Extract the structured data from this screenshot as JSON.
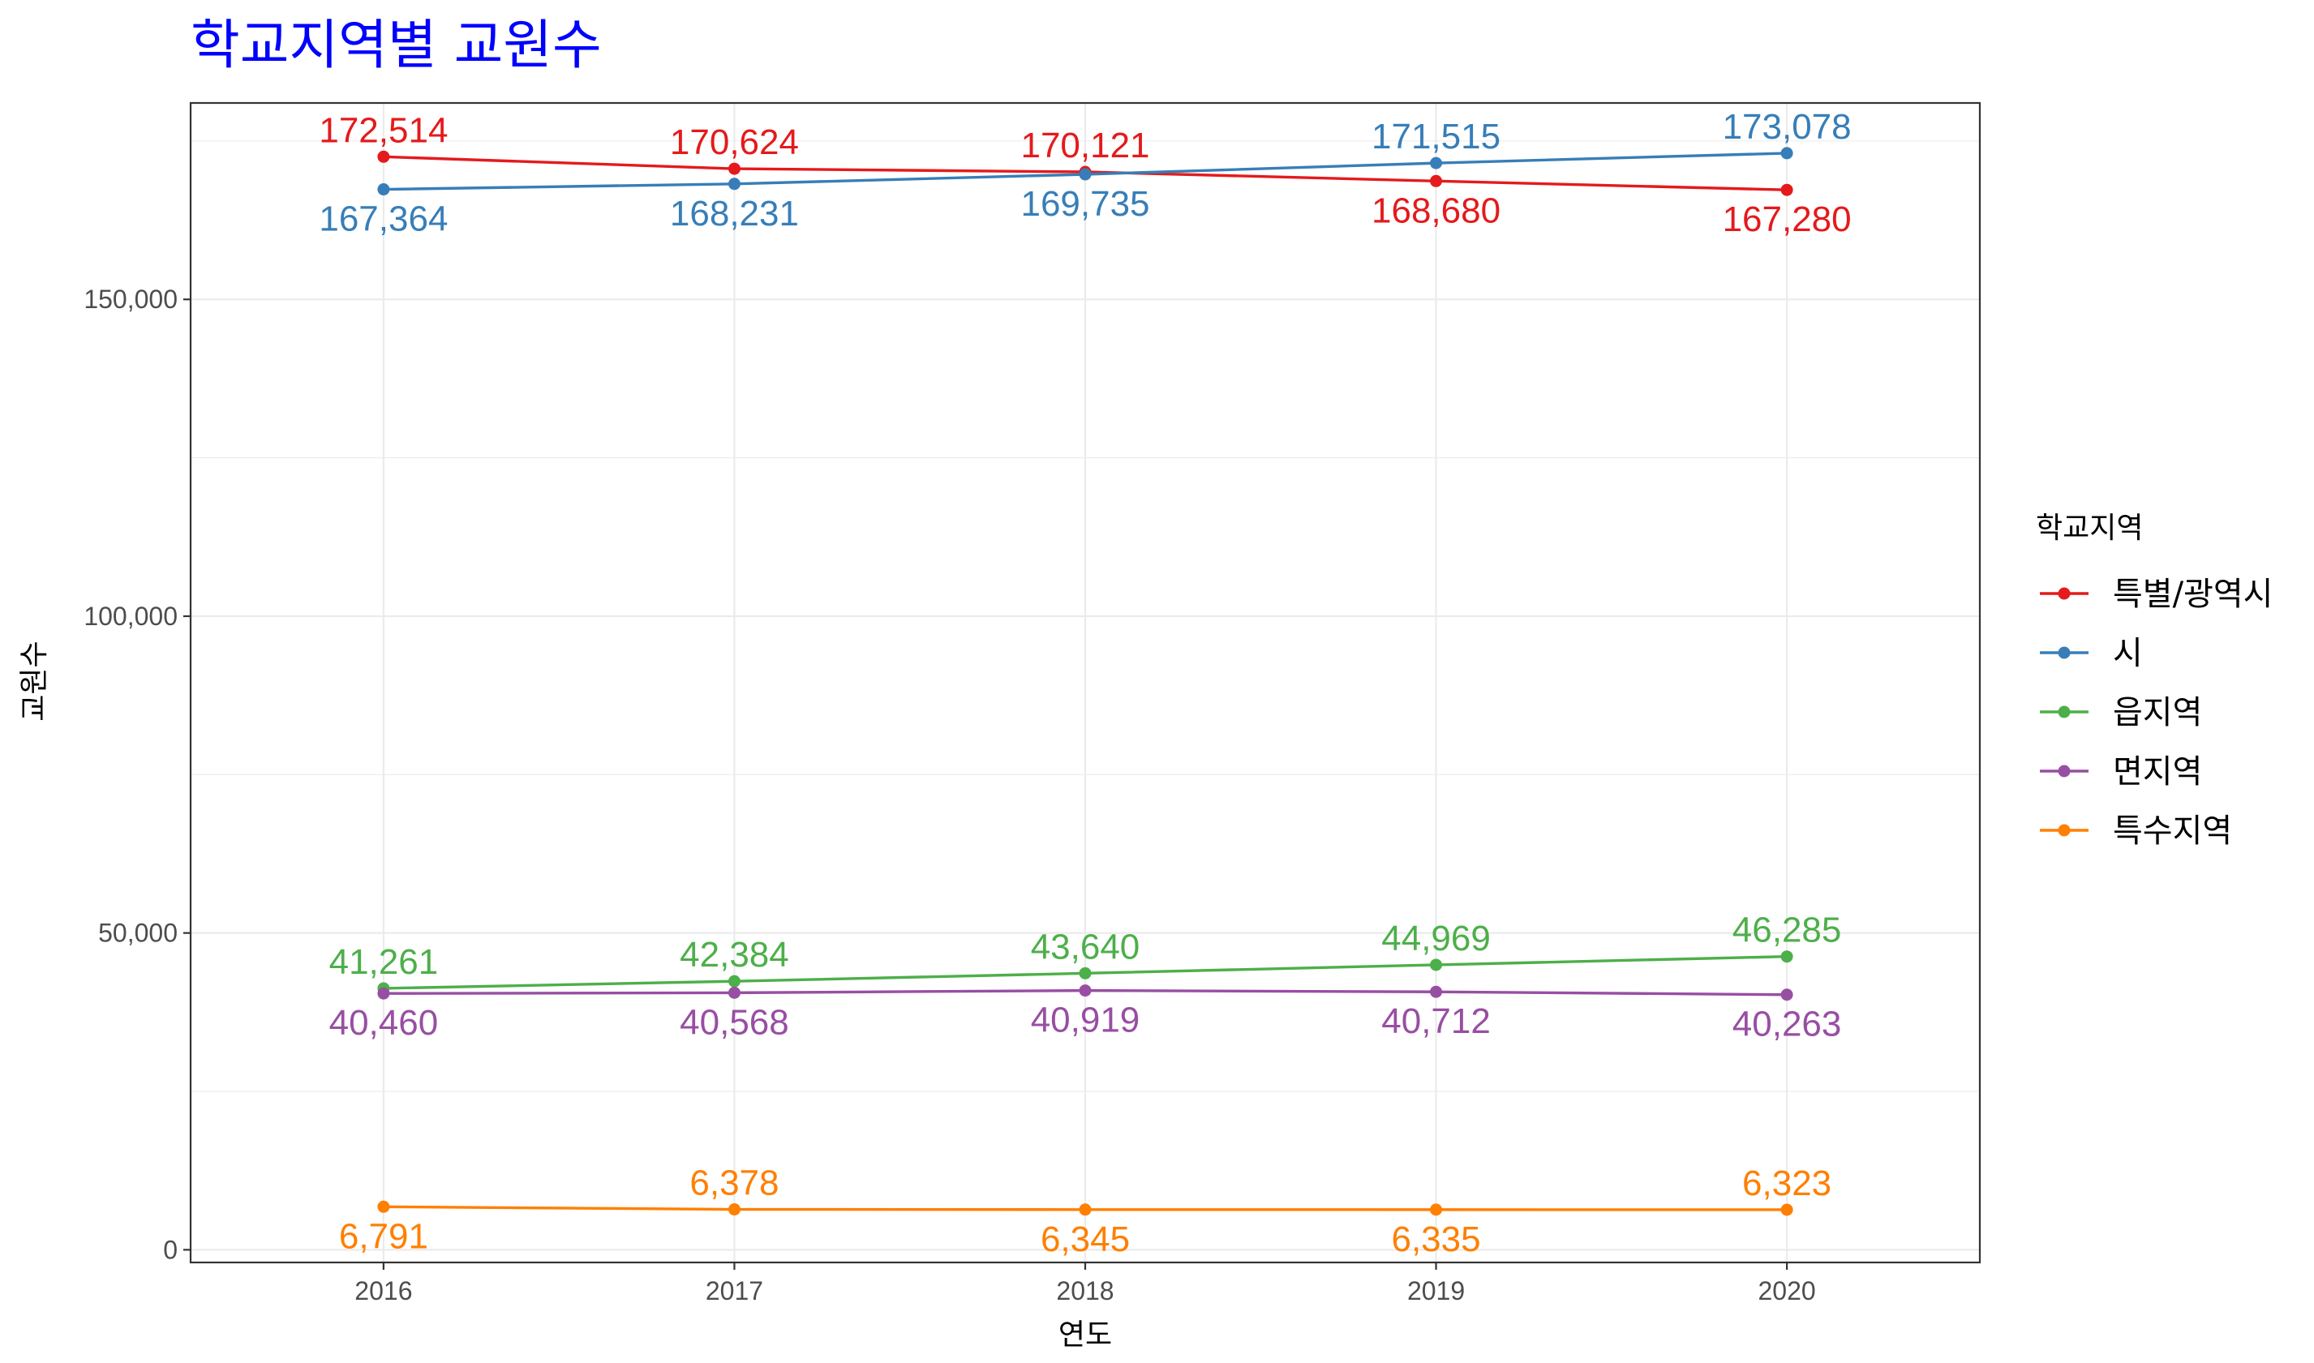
{
  "chart_data": {
    "type": "line",
    "title": "학교지역별 교원수",
    "xlabel": "연도",
    "ylabel": "교원수",
    "x": [
      2016,
      2017,
      2018,
      2019,
      2020
    ],
    "x_tick_labels": [
      "2016",
      "2017",
      "2018",
      "2019",
      "2020"
    ],
    "xlim": [
      2015.45,
      2020.55
    ],
    "ylim": [
      -2000,
      181000
    ],
    "y_ticks": [
      0,
      50000,
      100000,
      150000
    ],
    "y_tick_labels": [
      "0",
      "50,000",
      "100,000",
      "150,000"
    ],
    "grid": true,
    "legend": {
      "title": "학교지역",
      "position": "right"
    },
    "series": [
      {
        "name": "특별/광역시",
        "color": "#e41a1c",
        "values": [
          172514,
          170624,
          170121,
          168680,
          167280
        ],
        "labels": [
          "172,514",
          "170,624",
          "170,121",
          "168,680",
          "167,280"
        ],
        "label_side": [
          "above",
          "above",
          "above",
          "below",
          "below"
        ]
      },
      {
        "name": "시",
        "color": "#377eb8",
        "values": [
          167364,
          168231,
          169735,
          171515,
          173078
        ],
        "labels": [
          "167,364",
          "168,231",
          "169,735",
          "171,515",
          "173,078"
        ],
        "label_side": [
          "below",
          "below",
          "below",
          "above",
          "above"
        ]
      },
      {
        "name": "읍지역",
        "color": "#4daf4a",
        "values": [
          41261,
          42384,
          43640,
          44969,
          46285
        ],
        "labels": [
          "41,261",
          "42,384",
          "43,640",
          "44,969",
          "46,285"
        ],
        "label_side": [
          "above",
          "above",
          "above",
          "above",
          "above"
        ]
      },
      {
        "name": "면지역",
        "color": "#984ea3",
        "values": [
          40460,
          40568,
          40919,
          40712,
          40263
        ],
        "labels": [
          "40,460",
          "40,568",
          "40,919",
          "40,712",
          "40,263"
        ],
        "label_side": [
          "below",
          "below",
          "below",
          "below",
          "below"
        ]
      },
      {
        "name": "특수지역",
        "color": "#ff7f00",
        "values": [
          6791,
          6378,
          6345,
          6335,
          6323
        ],
        "labels": [
          "6,791",
          "6,378",
          "6,345",
          "6,335",
          "6,323"
        ],
        "label_side": [
          "below",
          "above",
          "below",
          "below",
          "above"
        ]
      }
    ]
  }
}
